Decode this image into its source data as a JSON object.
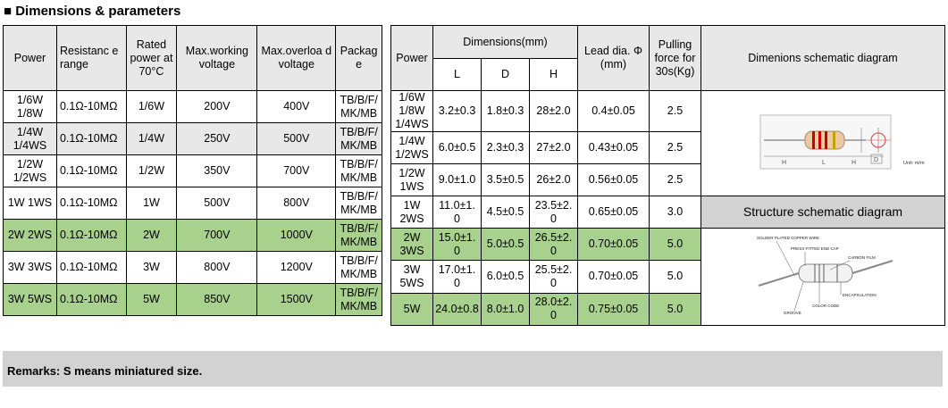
{
  "title": "■ Dimensions & parameters",
  "left_table": {
    "headers": [
      "Power",
      "Resistanc e   range",
      "Rated power at 70°C",
      "Max.working voltage",
      "Max.overloa d voltage",
      "Packag e"
    ],
    "rows": [
      {
        "power": "1/6W 1/8W",
        "resistance": "0.1Ω-10MΩ",
        "rated": "1/6W",
        "working": "200V",
        "overload": "400V",
        "package": "TB/B/F/ MK/MB",
        "green": false
      },
      {
        "power": "1/4W 1/4WS",
        "resistance": "0.1Ω-10MΩ",
        "rated": "1/4W",
        "working": "250V",
        "overload": "500V",
        "package": "TB/B/F/ MK/MB",
        "green": false,
        "grey": true
      },
      {
        "power": "1/2W 1/2WS",
        "resistance": "0.1Ω-10MΩ",
        "rated": "1/2W",
        "working": "350V",
        "overload": "700V",
        "package": "TB/B/F/ MK/MB",
        "green": false
      },
      {
        "power": "1W 1WS",
        "resistance": "0.1Ω-10MΩ",
        "rated": "1W",
        "working": "500V",
        "overload": "800V",
        "package": "TB/B/F/ MK/MB",
        "green": false
      },
      {
        "power": "2W 2WS",
        "resistance": "0.1Ω-10MΩ",
        "rated": "2W",
        "working": "700V",
        "overload": "1000V",
        "package": "TB/B/F/ MK/MB",
        "green": true
      },
      {
        "power": "3W 3WS",
        "resistance": "0.1Ω-10MΩ",
        "rated": "3W",
        "working": "800V",
        "overload": "1200V",
        "package": "TB/B/F/ MK/MB",
        "green": false
      },
      {
        "power": "3W 5WS",
        "resistance": "0.1Ω-10MΩ",
        "rated": "5W",
        "working": "850V",
        "overload": "1500V",
        "package": "TB/B/F/ MK/MB",
        "green": true
      }
    ]
  },
  "right_table": {
    "headers": {
      "power": "Power",
      "dimensions": "Dimensions(mm)",
      "L": "L",
      "D": "D",
      "H": "H",
      "lead": "Lead dia. Φ (mm)",
      "pulling": "Pulling force for 30s(Kg)",
      "diagram": "Dimenions schematic diagram"
    },
    "rows": [
      {
        "power": "1/6W 1/8W 1/4WS",
        "L": "3.2±0.3",
        "D": "1.8±0.3",
        "H": "28±2.0",
        "lead": "0.4±0.05",
        "pulling": "2.5",
        "green": false
      },
      {
        "power": "1/4W 1/2WS",
        "L": "6.0±0.5",
        "D": "2.3±0.3",
        "H": "27±2.0",
        "lead": "0.43±0.05",
        "pulling": "2.5",
        "green": false
      },
      {
        "power": "1/2W 1WS",
        "L": "9.0±1.0",
        "D": "3.5±0.5",
        "H": "26±2.0",
        "lead": "0.56±0.05",
        "pulling": "2.5",
        "green": false
      },
      {
        "power": "1W 2WS",
        "L": "11.0±1. 0",
        "D": "4.5±0.5",
        "H": "23.5±2. 0",
        "lead": "0.65±0.05",
        "pulling": "3.0",
        "green": false
      },
      {
        "power": "2W 3WS",
        "L": "15.0±1. 0",
        "D": "5.0±0.5",
        "H": "26.5±2. 0",
        "lead": "0.70±0.05",
        "pulling": "5.0",
        "green": true
      },
      {
        "power": "3W 5WS",
        "L": "17.0±1. 0",
        "D": "6.0±0.5",
        "H": "25.5±2. 0",
        "lead": "0.70±0.05",
        "pulling": "5.0",
        "green": false
      },
      {
        "power": "5W",
        "L": "24.0±0.8",
        "D": "8.0±1.0",
        "H": "28.0±2. 0",
        "lead": "0.75±0.05",
        "pulling": "5.0",
        "green": true
      }
    ],
    "structure_header": "Structure schematic diagram",
    "dim_diagram": {
      "h": "H",
      "l": "L",
      "d": "D",
      "unit": "Unit: m/m"
    },
    "structure_labels": {
      "wire": "SOLDER PLATED COPPER WIRE",
      "cap": "PRESS-FITTED END CAP",
      "film": "CARBON FILM",
      "encap": "ENCAPSULATION",
      "code": "COLOR CODE",
      "groove": "GROOVE"
    }
  },
  "remarks": "Remarks:  S means miniatured size."
}
